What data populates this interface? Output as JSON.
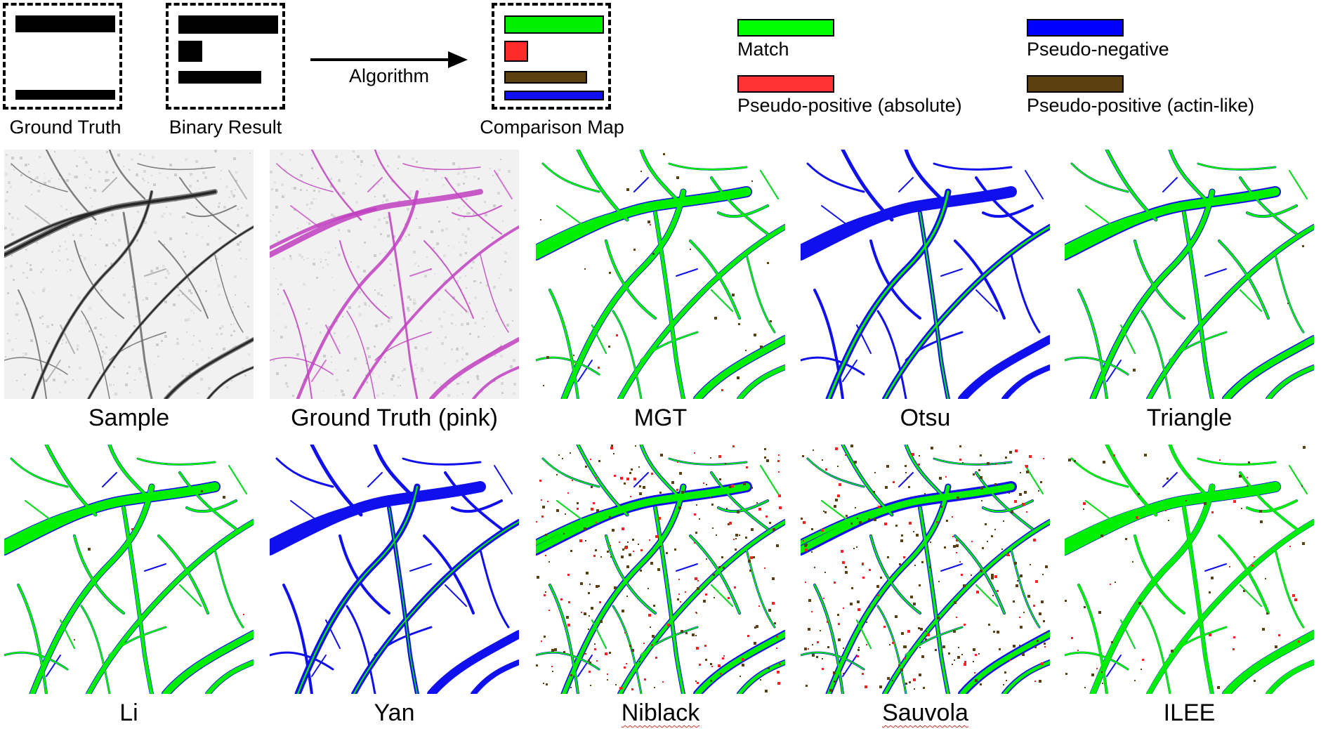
{
  "diagram": {
    "ground_truth_label": "Ground Truth",
    "binary_result_label": "Binary Result",
    "algorithm_label": "Algorithm",
    "comparison_map_label": "Comparison Map"
  },
  "legend": {
    "items": [
      {
        "label": "Match",
        "color": "#00ff00"
      },
      {
        "label": "Pseudo-negative",
        "color": "#0000ff"
      },
      {
        "label": "Pseudo-positive (absolute)",
        "color": "#ff3333"
      },
      {
        "label": "Pseudo-positive (actin-like)",
        "color": "#5c4010"
      }
    ]
  },
  "panels": [
    {
      "label": "Sample",
      "type": "sample"
    },
    {
      "label": "Ground Truth (pink)",
      "type": "truth"
    },
    {
      "label": "MGT",
      "type": "mgt"
    },
    {
      "label": "Otsu",
      "type": "otsu"
    },
    {
      "label": "Triangle",
      "type": "triangle"
    },
    {
      "label": "Li",
      "type": "li"
    },
    {
      "label": "Yan",
      "type": "yan"
    },
    {
      "label": "Niblack",
      "type": "niblack"
    },
    {
      "label": "Sauvola",
      "type": "sauvola"
    },
    {
      "label": "ILEE",
      "type": "ilee"
    }
  ],
  "colors": {
    "match": "#00ee00",
    "pseudo_negative": "#1010ee",
    "pseudo_positive_absolute": "#ff2020",
    "pseudo_positive_actin": "#5c4010",
    "sample_fiber": "#202020",
    "truth_fiber": "#c040c0"
  }
}
